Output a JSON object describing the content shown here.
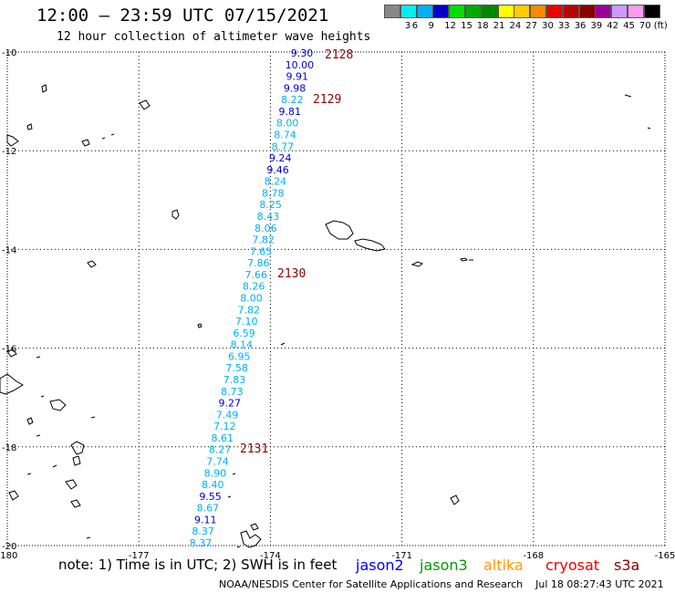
{
  "header": {
    "title": "12:00 – 23:59 UTC 07/15/2021",
    "subtitle": "12 hour collection of altimeter wave heights"
  },
  "legend": {
    "colors": [
      "#888888",
      "#00eeee",
      "#00b0f0",
      "#0000cc",
      "#00dd00",
      "#00aa00",
      "#008800",
      "#ffff00",
      "#ffcc00",
      "#ff8800",
      "#ee0000",
      "#bb0000",
      "#880000",
      "#990099",
      "#cc99ff",
      "#ff99ee",
      "#000000"
    ],
    "labels": [
      "3",
      "6",
      "9",
      "12",
      "15",
      "18",
      "21",
      "24",
      "27",
      "30",
      "33",
      "36",
      "39",
      "42",
      "45",
      "70",
      "(ft)"
    ]
  },
  "map": {
    "lon_ticks": [
      "-180",
      "-177",
      "-174",
      "-171",
      "-168",
      "-165"
    ],
    "lat_ticks": [
      "-10",
      "-12",
      "-14",
      "-16",
      "-18",
      "-20"
    ],
    "pass_labels": [
      "2128",
      "2129",
      "2130",
      "2131"
    ],
    "pass_label_color": "#880000",
    "swh": [
      {
        "v": "9.30",
        "c": "#0000cc"
      },
      {
        "v": "10.00",
        "c": "#0000cc"
      },
      {
        "v": "9.91",
        "c": "#0000cc"
      },
      {
        "v": "9.98",
        "c": "#0000cc"
      },
      {
        "v": "8.22",
        "c": "#00b0f0"
      },
      {
        "v": "9.81",
        "c": "#0000cc"
      },
      {
        "v": "8.00",
        "c": "#00b0f0"
      },
      {
        "v": "8.74",
        "c": "#00b0f0"
      },
      {
        "v": "8.77",
        "c": "#00b0f0"
      },
      {
        "v": "9.24",
        "c": "#0000cc"
      },
      {
        "v": "9.46",
        "c": "#0000cc"
      },
      {
        "v": "8.24",
        "c": "#00b0f0"
      },
      {
        "v": "8.78",
        "c": "#00b0f0"
      },
      {
        "v": "8.25",
        "c": "#00b0f0"
      },
      {
        "v": "8.43",
        "c": "#00b0f0"
      },
      {
        "v": "8.06",
        "c": "#00b0f0"
      },
      {
        "v": "7.82",
        "c": "#00b0f0"
      },
      {
        "v": "7.65",
        "c": "#00b0f0"
      },
      {
        "v": "7.86",
        "c": "#00b0f0"
      },
      {
        "v": "7.66",
        "c": "#00b0f0"
      },
      {
        "v": "8.26",
        "c": "#00b0f0"
      },
      {
        "v": "8.00",
        "c": "#00b0f0"
      },
      {
        "v": "7.82",
        "c": "#00b0f0"
      },
      {
        "v": "7.10",
        "c": "#00b0f0"
      },
      {
        "v": "6.59",
        "c": "#00b0f0"
      },
      {
        "v": "8.14",
        "c": "#00b0f0"
      },
      {
        "v": "6.95",
        "c": "#00b0f0"
      },
      {
        "v": "7.58",
        "c": "#00b0f0"
      },
      {
        "v": "7.83",
        "c": "#00b0f0"
      },
      {
        "v": "8.73",
        "c": "#00b0f0"
      },
      {
        "v": "9.27",
        "c": "#0000cc"
      },
      {
        "v": "7.49",
        "c": "#00b0f0"
      },
      {
        "v": "7.12",
        "c": "#00b0f0"
      },
      {
        "v": "8.61",
        "c": "#00b0f0"
      },
      {
        "v": "8.27",
        "c": "#00b0f0"
      },
      {
        "v": "7.74",
        "c": "#00b0f0"
      },
      {
        "v": "8.90",
        "c": "#00b0f0"
      },
      {
        "v": "8.40",
        "c": "#00b0f0"
      },
      {
        "v": "9.55",
        "c": "#0000cc"
      },
      {
        "v": "8.67",
        "c": "#00b0f0"
      },
      {
        "v": "9.11",
        "c": "#0000cc"
      },
      {
        "v": "8.37",
        "c": "#00b0f0"
      },
      {
        "v": "8.37",
        "c": "#00b0f0"
      }
    ]
  },
  "footer": {
    "note": "note: 1) Time is in UTC; 2) SWH is in feet",
    "missions": [
      {
        "name": "jason2",
        "color": "#0000ee"
      },
      {
        "name": "jason3",
        "color": "#009900"
      },
      {
        "name": "altika",
        "color": "#ff9900"
      },
      {
        "name": "cryosat",
        "color": "#ee0000"
      },
      {
        "name": "s3a",
        "color": "#880000"
      }
    ],
    "credits": "NOAA/NESDIS Center for Satellite Applications and Research    Jul 18 08:27:43 UTC 2021"
  }
}
